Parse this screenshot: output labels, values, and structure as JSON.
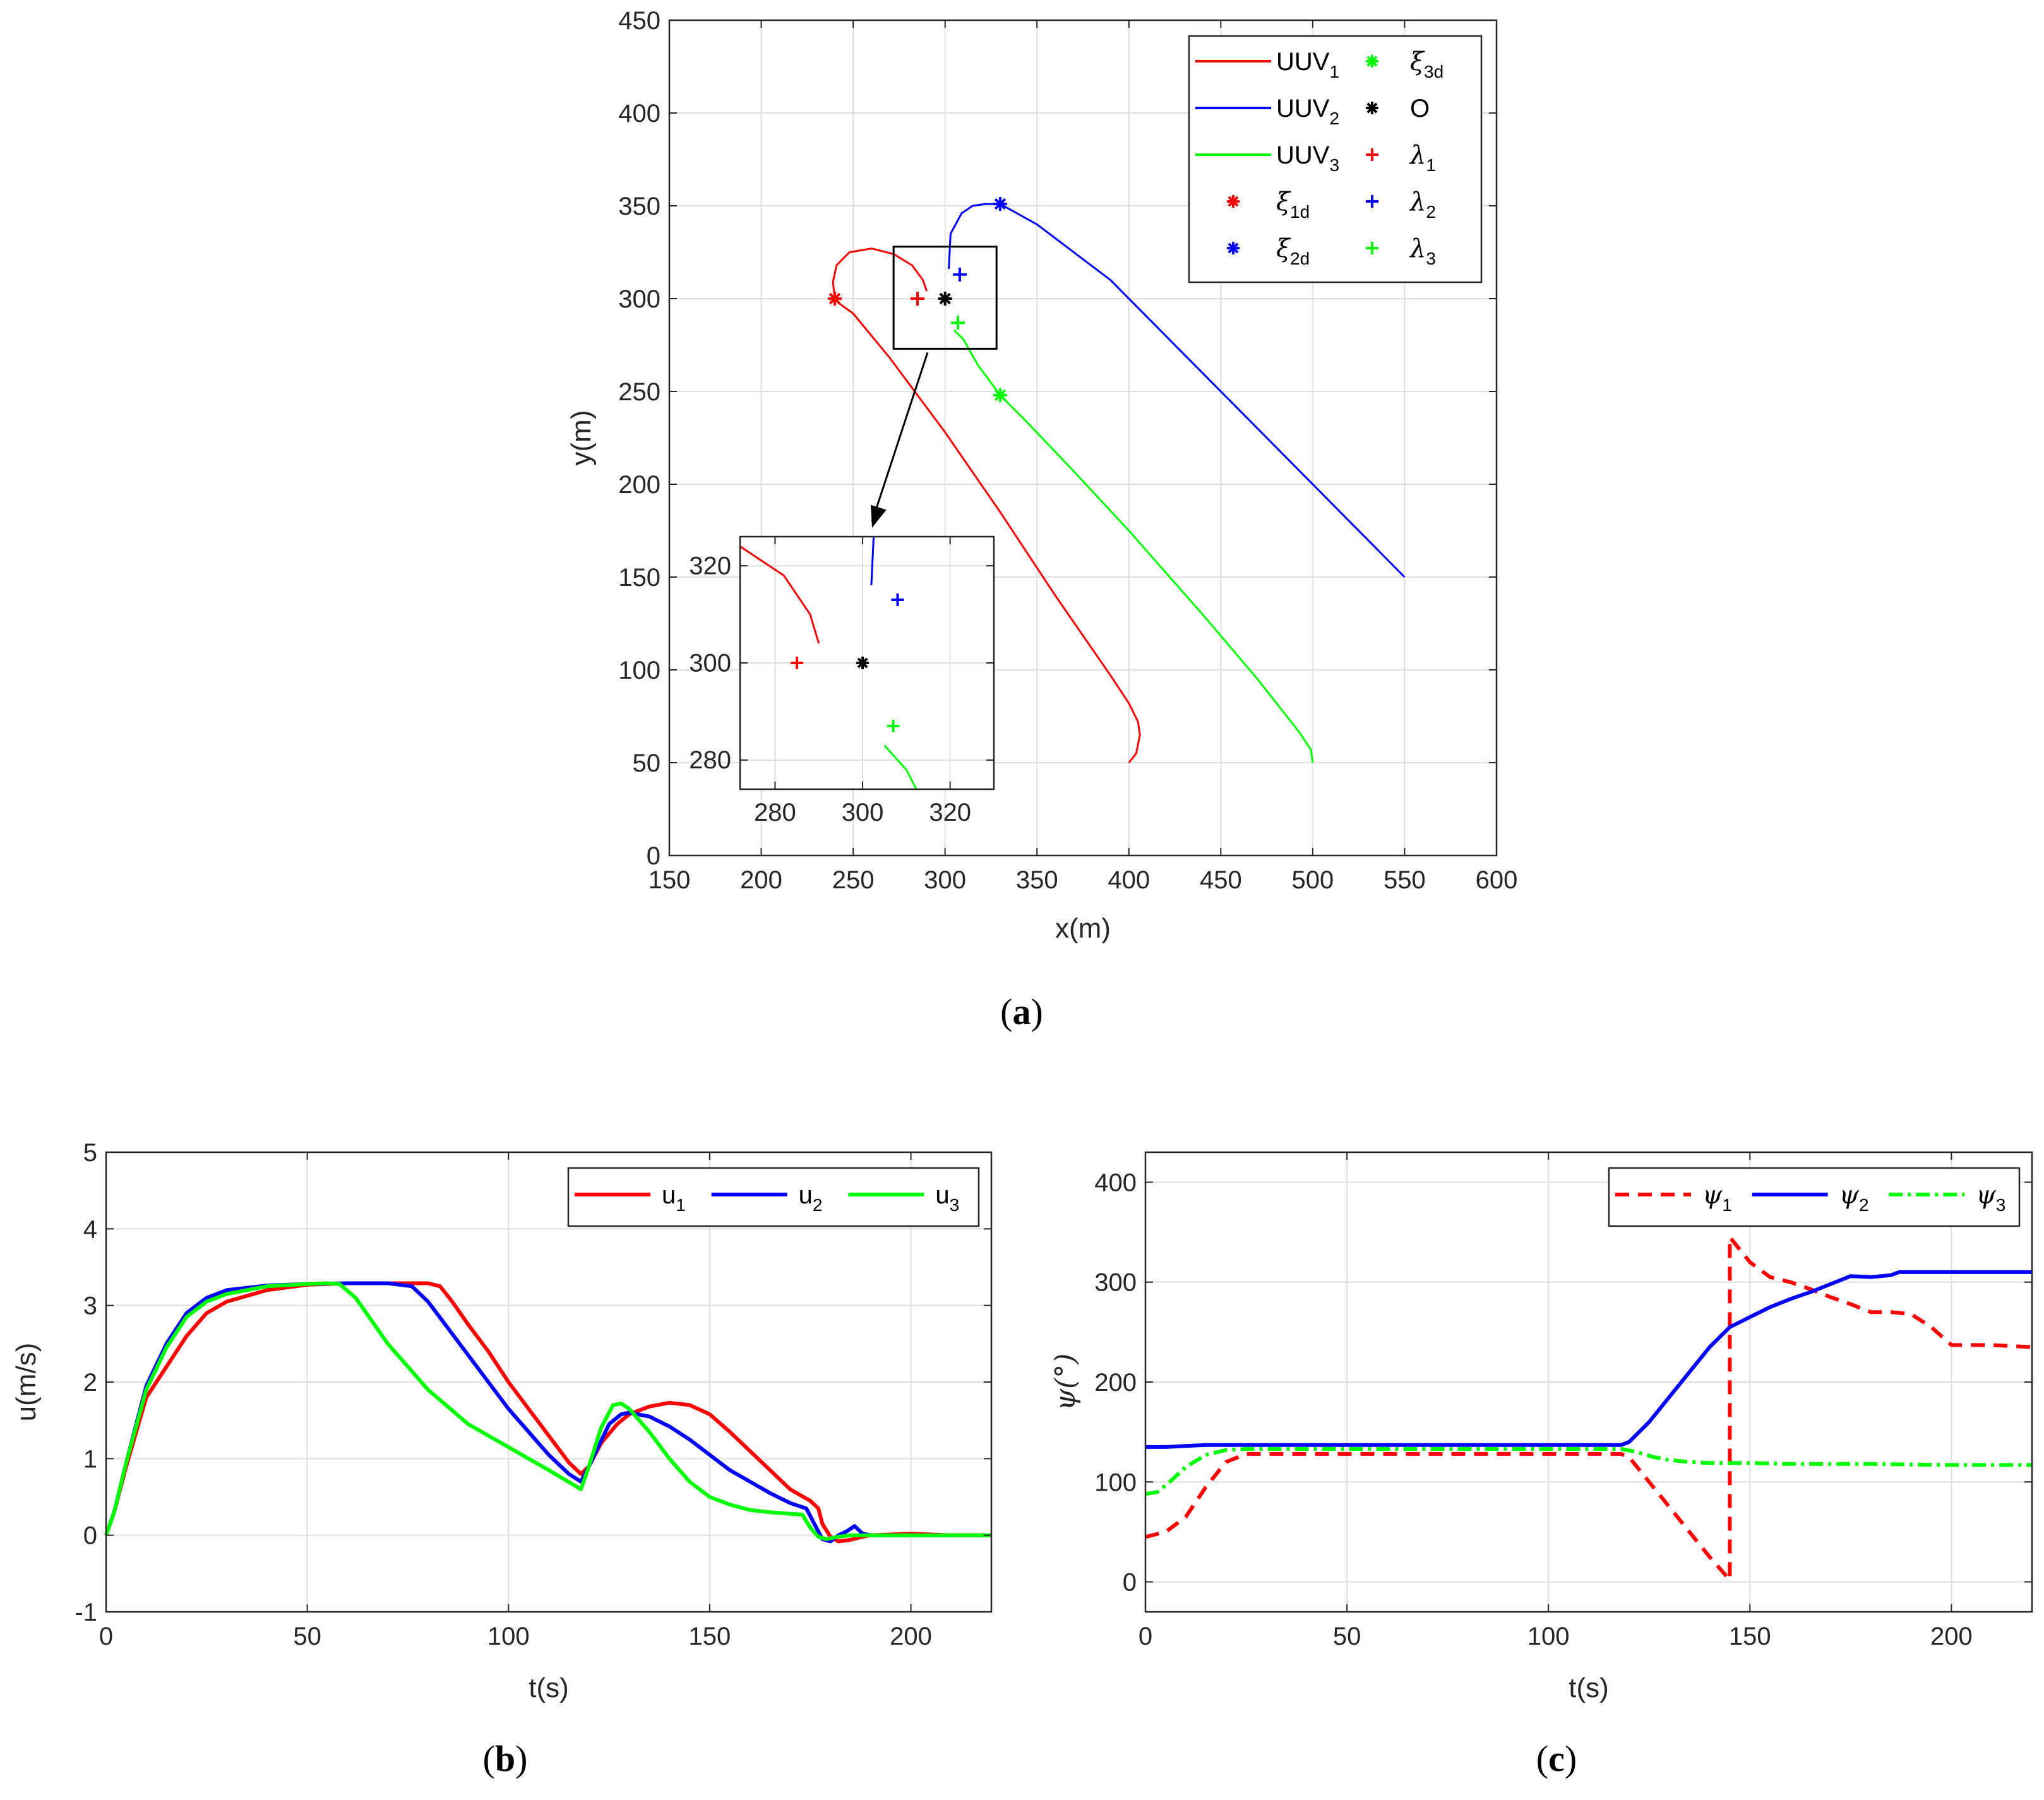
{
  "figure": {
    "captions": [
      "(a)",
      "(b)",
      "(c)"
    ]
  },
  "chart_data": [
    {
      "id": "a",
      "type": "line",
      "title": "",
      "xlabel": "x(m)",
      "ylabel": "y(m)",
      "xlim": [
        150,
        600
      ],
      "ylim": [
        0,
        450
      ],
      "xticks": [
        150,
        200,
        250,
        300,
        350,
        400,
        450,
        500,
        550,
        600
      ],
      "yticks": [
        0,
        50,
        100,
        150,
        200,
        250,
        300,
        350,
        400,
        450
      ],
      "grid": true,
      "legend_position": "top-right",
      "legend": [
        {
          "label": "UUV",
          "sub": "1",
          "color": "#ff0000",
          "kind": "line"
        },
        {
          "label": "UUV",
          "sub": "2",
          "color": "#0000ff",
          "kind": "line"
        },
        {
          "label": "UUV",
          "sub": "3",
          "color": "#00ff00",
          "kind": "line"
        },
        {
          "label": "ξ",
          "sub": "1d",
          "color": "#ff0000",
          "kind": "star"
        },
        {
          "label": "ξ",
          "sub": "2d",
          "color": "#0000ff",
          "kind": "star"
        },
        {
          "label": "ξ",
          "sub": "3d",
          "color": "#00ff00",
          "kind": "star"
        },
        {
          "label": "O",
          "sub": "",
          "color": "#000000",
          "kind": "star"
        },
        {
          "label": "λ",
          "sub": "1",
          "color": "#ff0000",
          "kind": "plus"
        },
        {
          "label": "λ",
          "sub": "2",
          "color": "#0000ff",
          "kind": "plus"
        },
        {
          "label": "λ",
          "sub": "3",
          "color": "#00ff00",
          "kind": "plus"
        }
      ],
      "series": [
        {
          "name": "UUV1",
          "color": "#ff0000",
          "x": [
            400,
            404,
            406,
            405,
            400,
            390,
            360,
            330,
            300,
            270,
            250,
            243,
            240,
            239,
            241,
            248,
            260,
            272,
            282,
            288,
            290
          ],
          "y": [
            50,
            55,
            65,
            72,
            82,
            97,
            140,
            185,
            228,
            268,
            292,
            297,
            300,
            309,
            318,
            325,
            327,
            324,
            318,
            310,
            304
          ]
        },
        {
          "name": "UUV2",
          "color": "#0000ff",
          "x": [
            550,
            510,
            470,
            430,
            390,
            350,
            330,
            322,
            315,
            309,
            303,
            302
          ],
          "y": [
            150,
            190,
            230,
            270,
            310,
            340,
            351,
            351,
            350,
            346,
            335,
            316
          ]
        },
        {
          "name": "UUV3",
          "color": "#00ff00",
          "x": [
            500,
            499,
            493,
            470,
            440,
            400,
            370,
            345,
            330,
            318,
            310,
            305
          ],
          "y": [
            50,
            57,
            66,
            95,
            130,
            175,
            207,
            233,
            248,
            264,
            278,
            283
          ]
        }
      ],
      "markers": [
        {
          "name": "xi1d",
          "x": 240,
          "y": 300,
          "color": "#ff0000",
          "kind": "star"
        },
        {
          "name": "xi2d",
          "x": 330,
          "y": 351,
          "color": "#0000ff",
          "kind": "star"
        },
        {
          "name": "xi3d",
          "x": 330,
          "y": 248,
          "color": "#00ff00",
          "kind": "star"
        },
        {
          "name": "O",
          "x": 300,
          "y": 300,
          "color": "#000000",
          "kind": "star"
        },
        {
          "name": "lambda1",
          "x": 285,
          "y": 300,
          "color": "#ff0000",
          "kind": "plus"
        },
        {
          "name": "lambda2",
          "x": 308,
          "y": 313,
          "color": "#0000ff",
          "kind": "plus"
        },
        {
          "name": "lambda3",
          "x": 307,
          "y": 287,
          "color": "#00ff00",
          "kind": "plus"
        }
      ],
      "zoom_region": {
        "xlim": [
          272,
          328
        ],
        "ylim": [
          273,
          328
        ]
      },
      "inset": {
        "xlim": [
          272,
          330
        ],
        "ylim": [
          274,
          326
        ],
        "xticks": [
          280,
          300,
          320
        ],
        "yticks": [
          280,
          300,
          320
        ]
      }
    },
    {
      "id": "b",
      "type": "line",
      "title": "",
      "xlabel": "t(s)",
      "ylabel": "u(m/s)",
      "xlim": [
        0,
        220
      ],
      "ylim": [
        -1,
        5
      ],
      "xticks": [
        0,
        50,
        100,
        150,
        200
      ],
      "yticks": [
        -1,
        0,
        1,
        2,
        3,
        4,
        5
      ],
      "grid": true,
      "legend_position": "top-right",
      "series": [
        {
          "name": "u",
          "sub": "1",
          "color": "#ff0000",
          "dash": "",
          "x": [
            0,
            2,
            5,
            10,
            15,
            20,
            25,
            30,
            40,
            50,
            60,
            70,
            80,
            83,
            86,
            90,
            95,
            100,
            105,
            110,
            115,
            118,
            120,
            123,
            127,
            130,
            135,
            140,
            145,
            150,
            155,
            160,
            165,
            170,
            175,
            177,
            178,
            180,
            182,
            185,
            188,
            190,
            200,
            210,
            220
          ],
          "y": [
            0,
            0.3,
            0.9,
            1.8,
            2.2,
            2.6,
            2.9,
            3.05,
            3.2,
            3.27,
            3.29,
            3.29,
            3.29,
            3.25,
            3.05,
            2.75,
            2.4,
            2.0,
            1.65,
            1.3,
            0.95,
            0.8,
            0.9,
            1.2,
            1.45,
            1.58,
            1.68,
            1.73,
            1.7,
            1.58,
            1.35,
            1.1,
            0.85,
            0.6,
            0.45,
            0.35,
            0.15,
            -0.02,
            -0.08,
            -0.06,
            -0.02,
            0.0,
            0.02,
            0.0,
            0.0
          ]
        },
        {
          "name": "u",
          "sub": "2",
          "color": "#0000ff",
          "dash": "",
          "x": [
            0,
            2,
            5,
            10,
            15,
            20,
            25,
            30,
            40,
            50,
            60,
            70,
            76,
            80,
            85,
            90,
            95,
            100,
            105,
            110,
            115,
            118,
            120,
            125,
            128,
            130,
            135,
            140,
            145,
            150,
            155,
            160,
            165,
            170,
            174,
            176,
            178,
            180,
            182,
            184,
            186,
            188,
            190,
            200,
            210,
            220
          ],
          "y": [
            0,
            0.3,
            0.95,
            1.95,
            2.5,
            2.9,
            3.1,
            3.2,
            3.26,
            3.28,
            3.29,
            3.29,
            3.25,
            3.05,
            2.7,
            2.35,
            2.0,
            1.65,
            1.35,
            1.05,
            0.8,
            0.7,
            0.9,
            1.45,
            1.58,
            1.6,
            1.55,
            1.42,
            1.25,
            1.05,
            0.85,
            0.7,
            0.55,
            0.42,
            0.35,
            0.15,
            -0.05,
            -0.08,
            0.0,
            0.05,
            0.12,
            0.02,
            0.0,
            0.0,
            0.0,
            0.0
          ]
        },
        {
          "name": "u",
          "sub": "3",
          "color": "#00ff00",
          "dash": "",
          "x": [
            0,
            2,
            5,
            10,
            15,
            20,
            25,
            30,
            40,
            50,
            55,
            58,
            62,
            66,
            70,
            75,
            80,
            90,
            100,
            110,
            118,
            120,
            123,
            126,
            128,
            130,
            135,
            140,
            145,
            150,
            155,
            160,
            165,
            170,
            173,
            175,
            177,
            179,
            182,
            185,
            190,
            200,
            210,
            220
          ],
          "y": [
            0,
            0.3,
            0.95,
            1.9,
            2.45,
            2.85,
            3.05,
            3.15,
            3.25,
            3.28,
            3.29,
            3.28,
            3.1,
            2.8,
            2.5,
            2.2,
            1.9,
            1.45,
            1.15,
            0.85,
            0.6,
            0.9,
            1.4,
            1.7,
            1.72,
            1.65,
            1.35,
            1.0,
            0.7,
            0.5,
            0.4,
            0.33,
            0.3,
            0.28,
            0.27,
            0.1,
            -0.02,
            -0.05,
            -0.02,
            0.0,
            0.0,
            0.0,
            0.0,
            0.0
          ]
        }
      ]
    },
    {
      "id": "c",
      "type": "line",
      "title": "",
      "xlabel": "t(s)",
      "ylabel": "ψ(°)",
      "xlim": [
        0,
        220
      ],
      "ylim": [
        -30,
        430
      ],
      "xticks": [
        0,
        50,
        100,
        150,
        200
      ],
      "yticks": [
        0,
        100,
        200,
        300,
        400
      ],
      "grid": true,
      "legend_position": "top-right",
      "series": [
        {
          "name": "ψ",
          "sub": "1",
          "color": "#ff0000",
          "dash": "22,14",
          "x": [
            0,
            5,
            10,
            15,
            20,
            25,
            50,
            100,
            118,
            120,
            125,
            130,
            135,
            140,
            145,
            145,
            150,
            155,
            160,
            165,
            170,
            175,
            180,
            185,
            190,
            195,
            200,
            210,
            220
          ],
          "y": [
            45,
            50,
            65,
            95,
            120,
            128,
            128,
            128,
            128,
            125,
            100,
            75,
            50,
            25,
            2,
            345,
            320,
            305,
            300,
            293,
            285,
            278,
            270,
            270,
            268,
            255,
            237,
            237,
            235
          ]
        },
        {
          "name": "ψ",
          "sub": "2",
          "color": "#0000ff",
          "dash": "",
          "x": [
            0,
            5,
            10,
            15,
            20,
            25,
            50,
            100,
            118,
            120,
            125,
            130,
            135,
            140,
            145,
            150,
            155,
            160,
            165,
            170,
            175,
            180,
            185,
            187,
            190,
            200,
            210,
            220
          ],
          "y": [
            135,
            135,
            136,
            137,
            137,
            137,
            137,
            137,
            137,
            140,
            160,
            185,
            210,
            235,
            255,
            265,
            275,
            283,
            290,
            298,
            306,
            305,
            307,
            310,
            310,
            310,
            310,
            310
          ]
        },
        {
          "name": "ψ",
          "sub": "3",
          "color": "#00ff00",
          "dash": "22,8,5,8",
          "x": [
            0,
            3,
            6,
            10,
            15,
            20,
            25,
            50,
            100,
            118,
            122,
            126,
            130,
            135,
            140,
            150,
            160,
            170,
            180,
            200,
            220
          ],
          "y": [
            88,
            90,
            100,
            115,
            127,
            132,
            133,
            133,
            133,
            133,
            130,
            125,
            122,
            120,
            119,
            119,
            118,
            118,
            118,
            117,
            117
          ]
        }
      ]
    }
  ]
}
